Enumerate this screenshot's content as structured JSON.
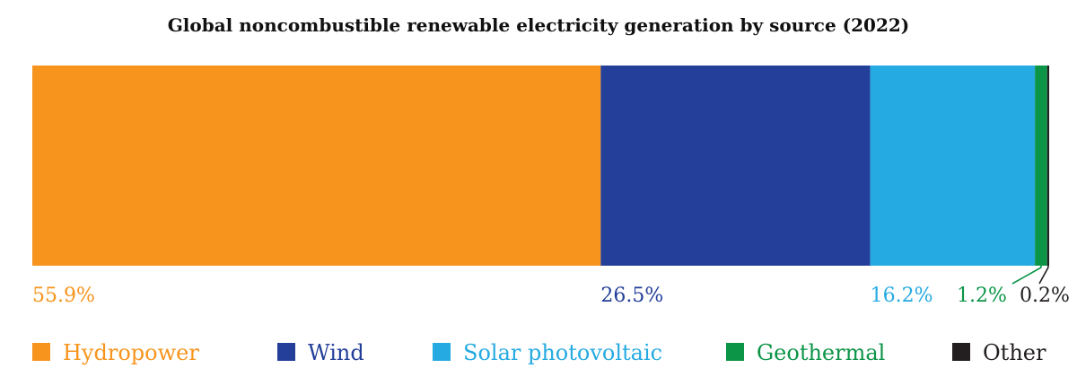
{
  "chart_data": {
    "type": "bar",
    "orientation": "horizontal-stacked-100",
    "title": "Global noncombustible renewable electricity generation by source (2022)",
    "categories": [
      "Hydropower",
      "Wind",
      "Solar photovoltaic",
      "Geothermal",
      "Other"
    ],
    "values": [
      55.9,
      26.5,
      16.2,
      1.2,
      0.2
    ],
    "value_labels": [
      "55.9%",
      "26.5%",
      "16.2%",
      "1.2%",
      "0.2%"
    ],
    "colors": [
      "#f7941d",
      "#233f99",
      "#25aae1",
      "#0c9447",
      "#231f20"
    ],
    "xlim": [
      0,
      100
    ],
    "legend_position": "bottom",
    "grid": false
  }
}
